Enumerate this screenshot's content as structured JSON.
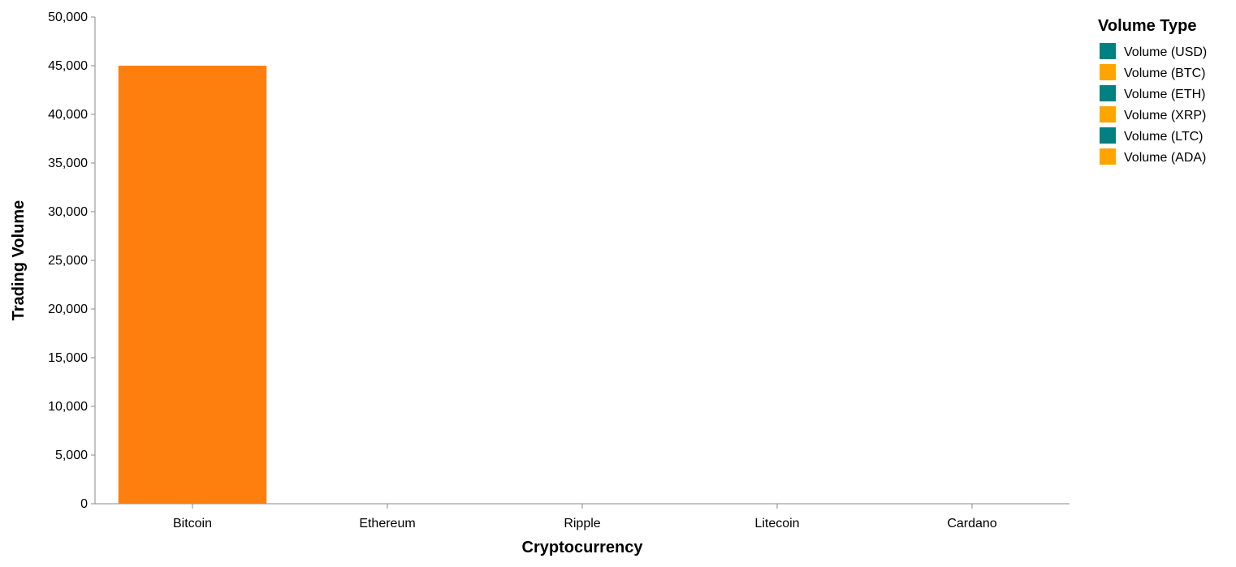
{
  "chart_data": {
    "type": "bar",
    "title": "",
    "xlabel": "Cryptocurrency",
    "ylabel": "Trading Volume",
    "categories": [
      "Bitcoin",
      "Ethereum",
      "Ripple",
      "Litecoin",
      "Cardano"
    ],
    "series": [
      {
        "name": "Volume (USD)",
        "color": "#008080",
        "values": [
          0,
          0,
          0,
          0,
          0
        ]
      },
      {
        "name": "Volume (BTC)",
        "color": "#FFA500",
        "values": [
          45000,
          0,
          0,
          0,
          0
        ]
      },
      {
        "name": "Volume (ETH)",
        "color": "#008080",
        "values": [
          0,
          0,
          0,
          0,
          0
        ]
      },
      {
        "name": "Volume (XRP)",
        "color": "#FFA500",
        "values": [
          0,
          0,
          0,
          0,
          0
        ]
      },
      {
        "name": "Volume (LTC)",
        "color": "#008080",
        "values": [
          0,
          0,
          0,
          0,
          0
        ]
      },
      {
        "name": "Volume (ADA)",
        "color": "#FFA500",
        "values": [
          0,
          0,
          0,
          0,
          0
        ]
      }
    ],
    "bar_color": "#FF7F0E",
    "ylim": [
      0,
      50000
    ],
    "yticks": [
      0,
      5000,
      10000,
      15000,
      20000,
      25000,
      30000,
      35000,
      40000,
      45000,
      50000
    ],
    "grid": false,
    "legend": {
      "title": "Volume Type",
      "placement": "right"
    }
  }
}
